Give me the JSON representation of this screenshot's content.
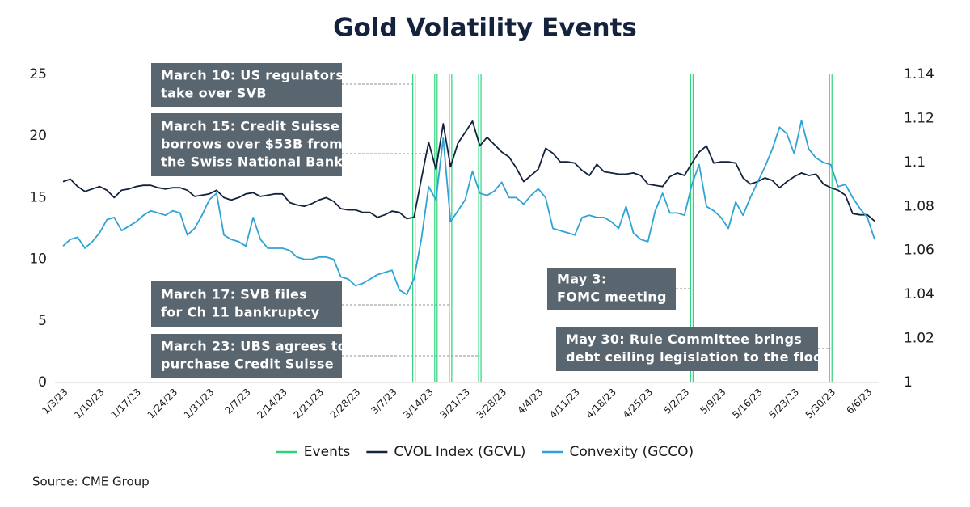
{
  "chart_data": {
    "type": "line",
    "title": "Gold Volatility Events",
    "source": "Source: CME Group",
    "categories": [
      "1/3/23",
      null,
      null,
      null,
      null,
      "1/10/23",
      null,
      null,
      null,
      null,
      "1/17/23",
      null,
      null,
      null,
      null,
      "1/24/23",
      null,
      null,
      null,
      null,
      "1/31/23",
      null,
      null,
      null,
      null,
      "2/7/23",
      null,
      null,
      null,
      null,
      "2/14/23",
      null,
      null,
      null,
      null,
      "2/21/23",
      null,
      null,
      null,
      null,
      "2/28/23",
      null,
      null,
      null,
      null,
      "3/7/23",
      null,
      null,
      null,
      null,
      "3/14/23",
      null,
      null,
      null,
      null,
      "3/21/23",
      null,
      null,
      null,
      null,
      "3/28/23",
      null,
      null,
      null,
      null,
      "4/4/23",
      null,
      null,
      null,
      null,
      "4/11/23",
      null,
      null,
      null,
      null,
      "4/18/23",
      null,
      null,
      null,
      null,
      "4/25/23",
      null,
      null,
      null,
      null,
      "5/2/23",
      null,
      null,
      null,
      null,
      "5/9/23",
      null,
      null,
      null,
      null,
      "5/16/23",
      null,
      null,
      null,
      null,
      "5/23/23",
      null,
      null,
      null,
      null,
      "5/30/23",
      null,
      null,
      null,
      null,
      "6/6/23",
      null
    ],
    "events": {
      "name": "Events",
      "color": "#2fd27a",
      "x": [
        48,
        51,
        53,
        57,
        86,
        105
      ]
    },
    "annotations": [
      [
        "March 10: US regulators",
        "take over SVB"
      ],
      [
        "March 15: Credit Suisse",
        "borrows over $53B from",
        "the Swiss National Bank"
      ],
      [
        "March 17: SVB files",
        "for Ch 11 bankruptcy"
      ],
      [
        "March 23: UBS agrees to",
        "purchase Credit Suisse"
      ],
      [
        "May 3:",
        "FOMC meeting"
      ],
      [
        "May 30: Rule Committee brings",
        "debt ceiling legislation to the floor"
      ]
    ],
    "series": [
      {
        "name": "CVOL Index (GCVL)",
        "color": "#14223d",
        "axis": "y",
        "values": [
          16.3,
          16.5,
          15.9,
          15.5,
          15.7,
          15.9,
          15.6,
          15.0,
          15.6,
          15.7,
          15.9,
          16.0,
          16.0,
          15.8,
          15.7,
          15.8,
          15.8,
          15.6,
          15.1,
          15.2,
          15.3,
          15.6,
          15.0,
          14.8,
          15.0,
          15.3,
          15.4,
          15.1,
          15.2,
          15.3,
          15.3,
          14.6,
          14.4,
          14.3,
          14.5,
          14.8,
          15.0,
          14.7,
          14.1,
          14.0,
          14.0,
          13.8,
          13.8,
          13.4,
          13.6,
          13.9,
          13.8,
          13.3,
          13.4,
          16.5,
          19.5,
          17.3,
          21.0,
          17.5,
          19.4,
          20.3,
          21.2,
          19.2,
          19.9,
          19.3,
          18.7,
          18.3,
          17.4,
          16.3,
          16.8,
          17.3,
          19.0,
          18.6,
          17.9,
          17.9,
          17.8,
          17.2,
          16.8,
          17.7,
          17.1,
          17.0,
          16.9,
          16.9,
          17.0,
          16.8,
          16.1,
          16.0,
          15.9,
          16.7,
          17.0,
          16.8,
          17.8,
          18.7,
          19.2,
          17.8,
          17.9,
          17.9,
          17.8,
          16.6,
          16.1,
          16.3,
          16.6,
          16.4,
          15.8,
          16.3,
          16.7,
          17.0,
          16.8,
          16.9,
          16.1,
          15.8,
          15.6,
          15.2,
          13.7,
          13.6,
          13.6,
          13.1
        ]
      },
      {
        "name": "Convexity (GCCO)",
        "color": "#2fa3d6",
        "axis": "y2",
        "values": [
          1.062,
          1.065,
          1.066,
          1.061,
          1.064,
          1.068,
          1.074,
          1.075,
          1.069,
          1.071,
          1.073,
          1.076,
          1.078,
          1.077,
          1.076,
          1.078,
          1.077,
          1.067,
          1.07,
          1.076,
          1.083,
          1.086,
          1.067,
          1.065,
          1.064,
          1.062,
          1.075,
          1.065,
          1.061,
          1.061,
          1.061,
          1.06,
          1.057,
          1.056,
          1.056,
          1.057,
          1.057,
          1.056,
          1.048,
          1.047,
          1.044,
          1.045,
          1.047,
          1.049,
          1.05,
          1.051,
          1.042,
          1.04,
          1.047,
          1.065,
          1.089,
          1.083,
          1.111,
          1.073,
          1.078,
          1.083,
          1.096,
          1.086,
          1.085,
          1.087,
          1.091,
          1.084,
          1.084,
          1.081,
          1.085,
          1.088,
          1.084,
          1.07,
          1.069,
          1.068,
          1.067,
          1.075,
          1.076,
          1.075,
          1.075,
          1.073,
          1.07,
          1.08,
          1.068,
          1.065,
          1.064,
          1.078,
          1.086,
          1.077,
          1.077,
          1.076,
          1.09,
          1.099,
          1.08,
          1.078,
          1.075,
          1.07,
          1.082,
          1.076,
          1.084,
          1.091,
          1.098,
          1.106,
          1.116,
          1.113,
          1.104,
          1.119,
          1.106,
          1.102,
          1.1,
          1.099,
          1.089,
          1.09,
          1.084,
          1.079,
          1.075,
          1.065
        ]
      }
    ],
    "ylim": [
      0,
      25
    ],
    "yticks": [
      0,
      5,
      10,
      15,
      20,
      25
    ],
    "y2lim": [
      1,
      1.14
    ],
    "y2ticks": [
      1,
      1.02,
      1.04,
      1.06,
      1.08,
      1.1,
      1.12,
      1.14
    ]
  }
}
